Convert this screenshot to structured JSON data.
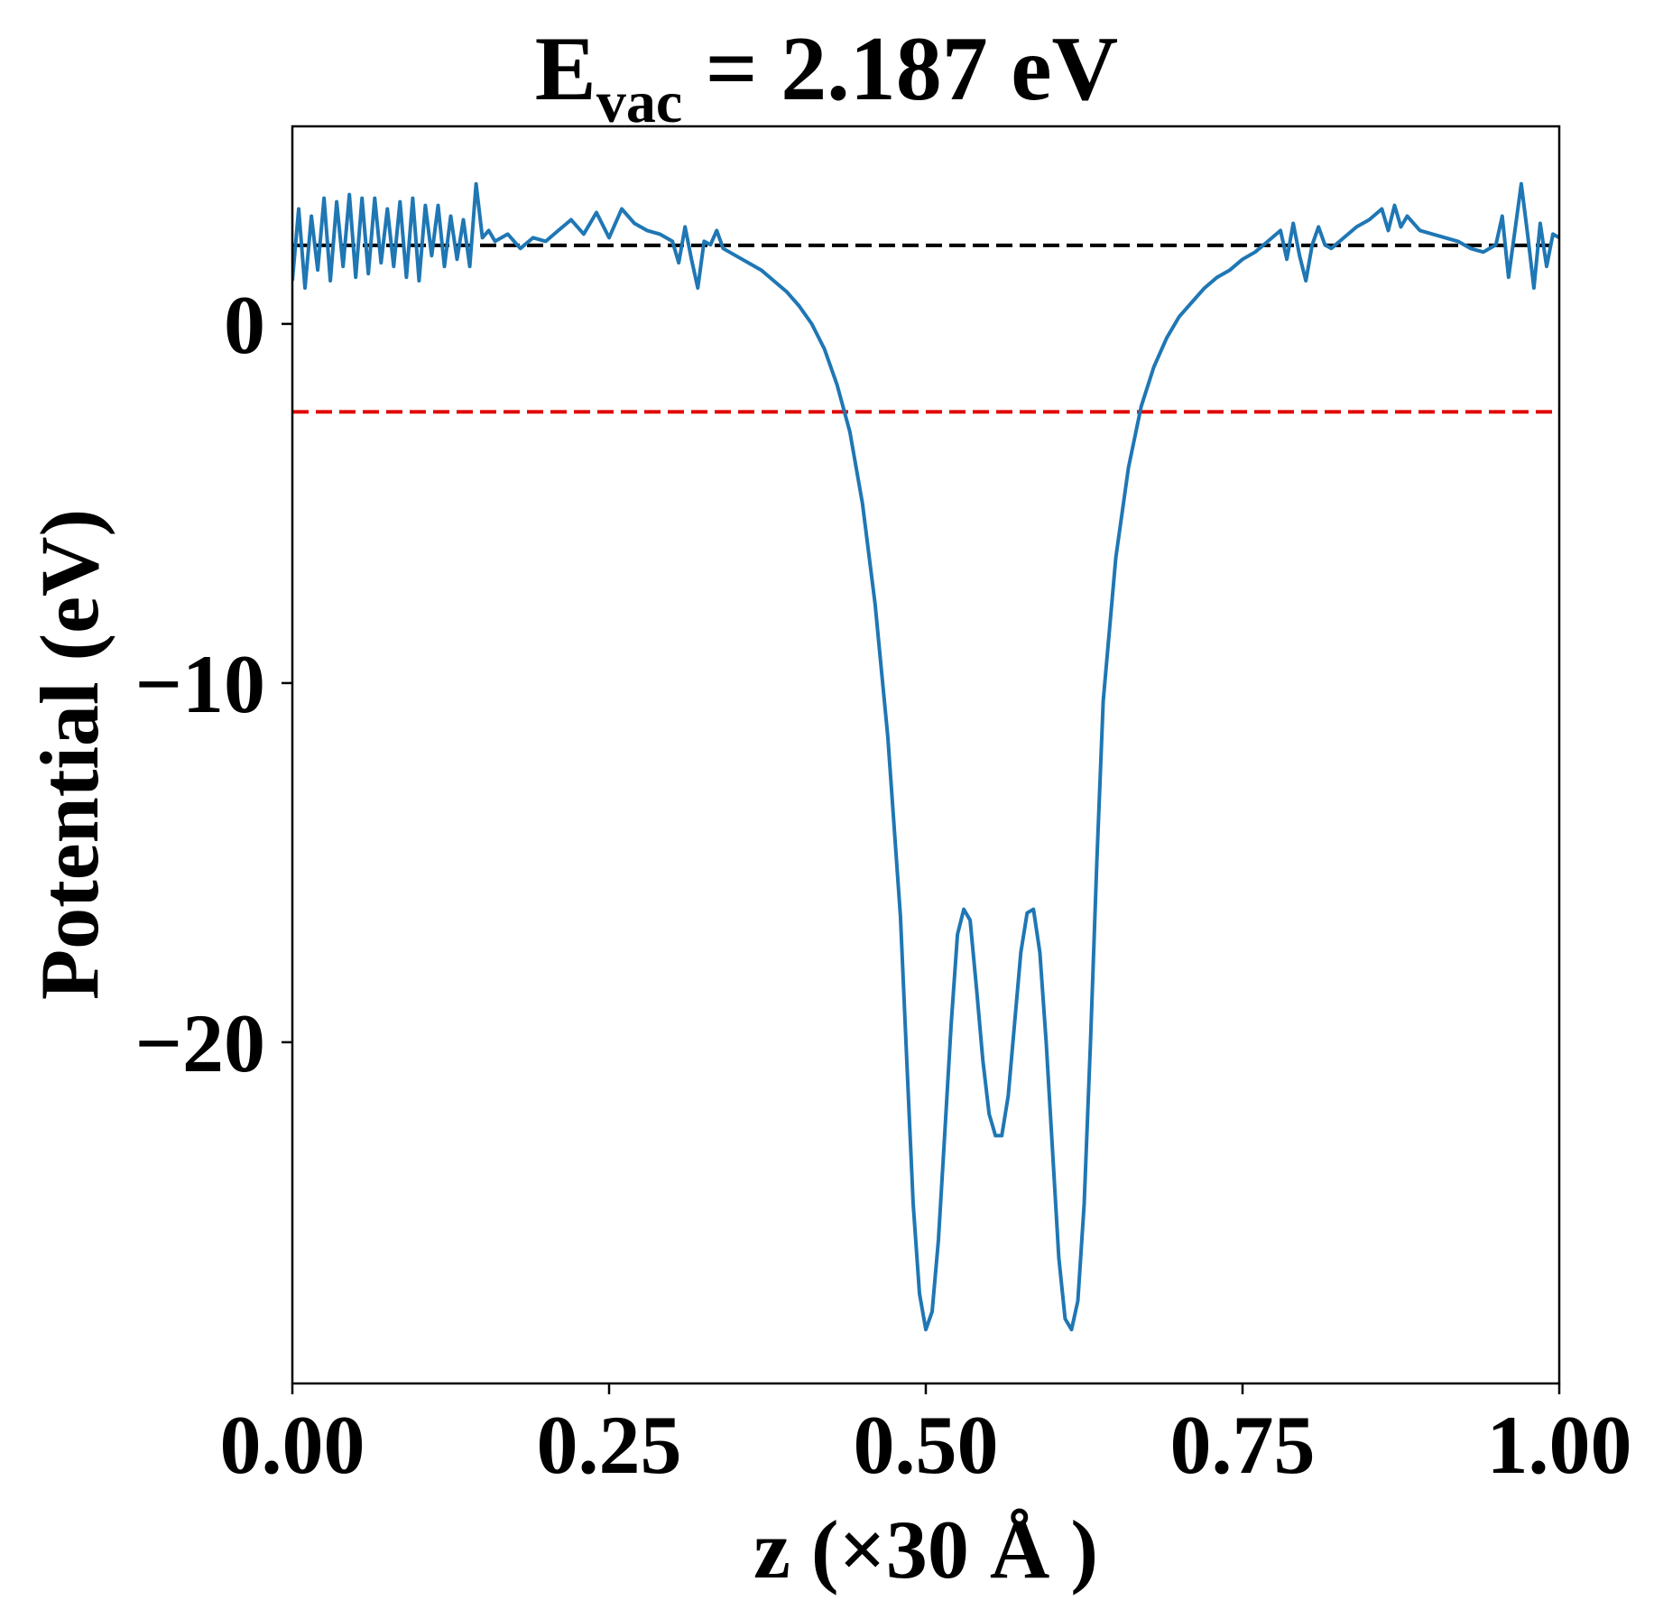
{
  "chart_data": {
    "type": "line",
    "title_main": "E",
    "title_sub": "vac",
    "title_rest": " = 2.187 eV",
    "xlabel": "z (×30 Å )",
    "ylabel": "Potential (eV)",
    "xlim": [
      0.0,
      1.0
    ],
    "ylim": [
      -29.5,
      5.5
    ],
    "x_ticks": [
      {
        "value": 0.0,
        "label": "0.00"
      },
      {
        "value": 0.25,
        "label": "0.25"
      },
      {
        "value": 0.5,
        "label": "0.50"
      },
      {
        "value": 0.75,
        "label": "0.75"
      },
      {
        "value": 1.0,
        "label": "1.00"
      }
    ],
    "y_ticks": [
      {
        "value": 0,
        "label": "0"
      },
      {
        "value": -10,
        "label": "−10"
      },
      {
        "value": -20,
        "label": "−20"
      }
    ],
    "grid": false,
    "reference_lines": [
      {
        "y": 2.187,
        "color": "#000000",
        "style": "dashed"
      },
      {
        "y": -2.45,
        "color": "#e00000",
        "style": "dashed"
      }
    ],
    "series": [
      {
        "color": "#1f77b4",
        "points": [
          [
            0.0,
            1.2
          ],
          [
            0.005,
            3.2
          ],
          [
            0.01,
            1.0
          ],
          [
            0.015,
            3.0
          ],
          [
            0.02,
            1.5
          ],
          [
            0.025,
            3.5
          ],
          [
            0.03,
            1.2
          ],
          [
            0.035,
            3.4
          ],
          [
            0.04,
            1.6
          ],
          [
            0.045,
            3.6
          ],
          [
            0.05,
            1.3
          ],
          [
            0.055,
            3.5
          ],
          [
            0.06,
            1.4
          ],
          [
            0.065,
            3.5
          ],
          [
            0.07,
            1.7
          ],
          [
            0.075,
            3.2
          ],
          [
            0.08,
            1.6
          ],
          [
            0.085,
            3.4
          ],
          [
            0.09,
            1.3
          ],
          [
            0.095,
            3.5
          ],
          [
            0.1,
            1.2
          ],
          [
            0.105,
            3.3
          ],
          [
            0.11,
            1.9
          ],
          [
            0.115,
            3.3
          ],
          [
            0.12,
            1.6
          ],
          [
            0.125,
            3.0
          ],
          [
            0.13,
            1.8
          ],
          [
            0.135,
            2.9
          ],
          [
            0.14,
            1.6
          ],
          [
            0.145,
            3.9
          ],
          [
            0.15,
            2.4
          ],
          [
            0.155,
            2.6
          ],
          [
            0.16,
            2.3
          ],
          [
            0.17,
            2.5
          ],
          [
            0.18,
            2.1
          ],
          [
            0.19,
            2.4
          ],
          [
            0.2,
            2.3
          ],
          [
            0.21,
            2.6
          ],
          [
            0.22,
            2.9
          ],
          [
            0.23,
            2.5
          ],
          [
            0.24,
            3.1
          ],
          [
            0.25,
            2.4
          ],
          [
            0.26,
            3.2
          ],
          [
            0.27,
            2.8
          ],
          [
            0.28,
            2.6
          ],
          [
            0.29,
            2.5
          ],
          [
            0.3,
            2.3
          ],
          [
            0.305,
            1.7
          ],
          [
            0.31,
            2.7
          ],
          [
            0.315,
            1.8
          ],
          [
            0.32,
            1.0
          ],
          [
            0.325,
            2.3
          ],
          [
            0.33,
            2.2
          ],
          [
            0.335,
            2.6
          ],
          [
            0.34,
            2.1
          ],
          [
            0.35,
            1.9
          ],
          [
            0.36,
            1.7
          ],
          [
            0.37,
            1.5
          ],
          [
            0.38,
            1.2
          ],
          [
            0.39,
            0.9
          ],
          [
            0.4,
            0.5
          ],
          [
            0.41,
            0.0
          ],
          [
            0.42,
            -0.7
          ],
          [
            0.43,
            -1.7
          ],
          [
            0.44,
            -3.0
          ],
          [
            0.45,
            -5.0
          ],
          [
            0.46,
            -7.8
          ],
          [
            0.47,
            -11.5
          ],
          [
            0.48,
            -16.5
          ],
          [
            0.485,
            -20.5
          ],
          [
            0.49,
            -24.5
          ],
          [
            0.495,
            -27.0
          ],
          [
            0.5,
            -28.0
          ],
          [
            0.505,
            -27.5
          ],
          [
            0.51,
            -25.5
          ],
          [
            0.515,
            -22.5
          ],
          [
            0.52,
            -19.5
          ],
          [
            0.525,
            -17.0
          ],
          [
            0.53,
            -16.3
          ],
          [
            0.535,
            -16.6
          ],
          [
            0.54,
            -18.5
          ],
          [
            0.545,
            -20.5
          ],
          [
            0.55,
            -22.0
          ],
          [
            0.555,
            -22.6
          ],
          [
            0.56,
            -22.6
          ],
          [
            0.565,
            -21.5
          ],
          [
            0.57,
            -19.5
          ],
          [
            0.575,
            -17.5
          ],
          [
            0.58,
            -16.4
          ],
          [
            0.585,
            -16.3
          ],
          [
            0.59,
            -17.5
          ],
          [
            0.595,
            -20.0
          ],
          [
            0.6,
            -23.0
          ],
          [
            0.605,
            -26.0
          ],
          [
            0.61,
            -27.7
          ],
          [
            0.615,
            -28.0
          ],
          [
            0.62,
            -27.2
          ],
          [
            0.625,
            -24.5
          ],
          [
            0.63,
            -20.0
          ],
          [
            0.635,
            -15.0
          ],
          [
            0.64,
            -10.5
          ],
          [
            0.65,
            -6.5
          ],
          [
            0.66,
            -4.0
          ],
          [
            0.67,
            -2.3
          ],
          [
            0.68,
            -1.2
          ],
          [
            0.69,
            -0.4
          ],
          [
            0.7,
            0.2
          ],
          [
            0.71,
            0.6
          ],
          [
            0.72,
            1.0
          ],
          [
            0.73,
            1.3
          ],
          [
            0.74,
            1.5
          ],
          [
            0.75,
            1.8
          ],
          [
            0.76,
            2.0
          ],
          [
            0.77,
            2.3
          ],
          [
            0.78,
            2.6
          ],
          [
            0.785,
            1.8
          ],
          [
            0.79,
            2.8
          ],
          [
            0.795,
            1.9
          ],
          [
            0.8,
            1.2
          ],
          [
            0.805,
            2.2
          ],
          [
            0.81,
            2.7
          ],
          [
            0.815,
            2.2
          ],
          [
            0.82,
            2.1
          ],
          [
            0.83,
            2.4
          ],
          [
            0.84,
            2.7
          ],
          [
            0.85,
            2.9
          ],
          [
            0.86,
            3.2
          ],
          [
            0.865,
            2.6
          ],
          [
            0.87,
            3.3
          ],
          [
            0.875,
            2.7
          ],
          [
            0.88,
            3.0
          ],
          [
            0.89,
            2.6
          ],
          [
            0.9,
            2.5
          ],
          [
            0.91,
            2.4
          ],
          [
            0.92,
            2.3
          ],
          [
            0.93,
            2.1
          ],
          [
            0.94,
            2.0
          ],
          [
            0.95,
            2.2
          ],
          [
            0.955,
            3.0
          ],
          [
            0.96,
            1.3
          ],
          [
            0.965,
            2.6
          ],
          [
            0.97,
            3.9
          ],
          [
            0.975,
            2.5
          ],
          [
            0.98,
            1.0
          ],
          [
            0.985,
            2.8
          ],
          [
            0.99,
            1.6
          ],
          [
            0.995,
            2.5
          ],
          [
            1.0,
            2.4
          ]
        ]
      }
    ]
  }
}
